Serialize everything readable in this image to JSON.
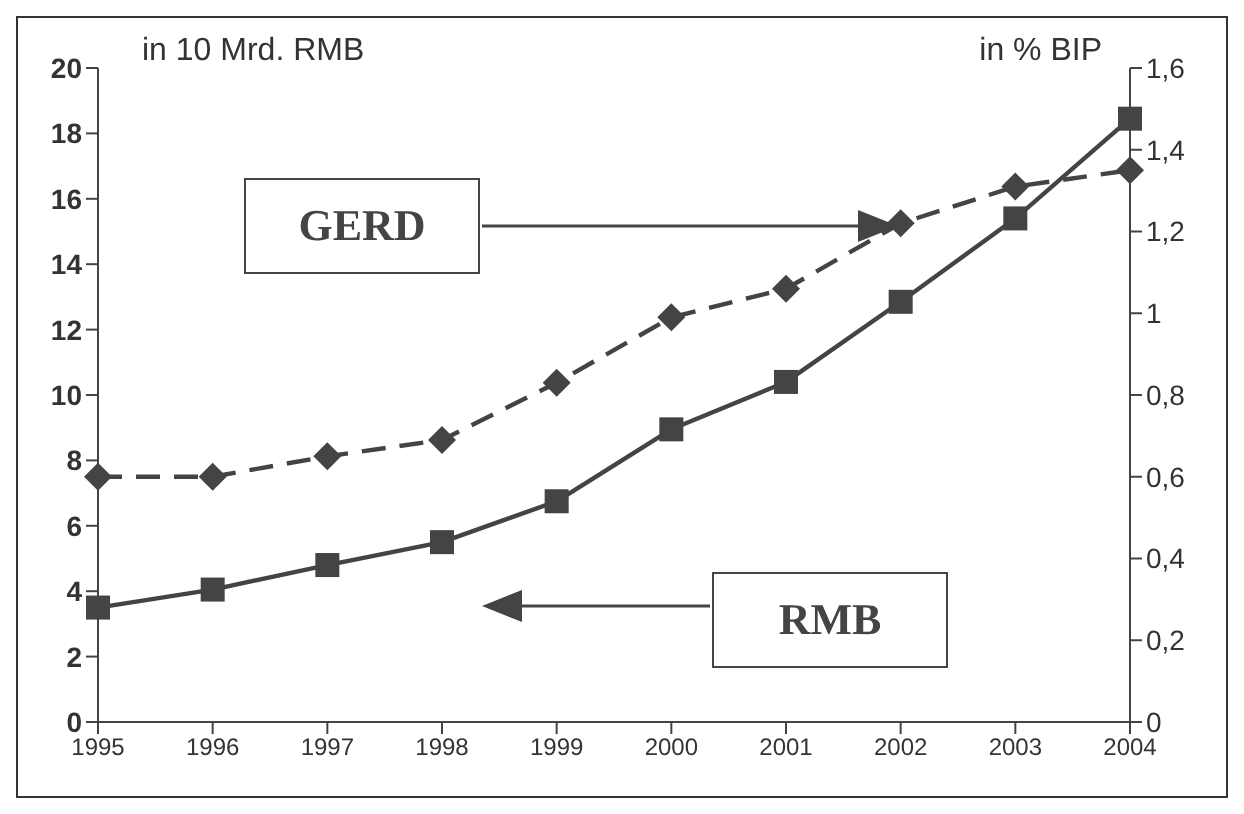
{
  "chart_data": {
    "type": "line",
    "ylabel": "in 10 Mrd.  RMB",
    "y2label": "in %  BIP",
    "categories": [
      "1995",
      "1996",
      "1997",
      "1998",
      "1999",
      "2000",
      "2001",
      "2002",
      "2003",
      "2004"
    ],
    "series": [
      {
        "name": "GERD",
        "type": "line",
        "axis": "y2",
        "color": "#444444",
        "marker": "diamond",
        "line_style": "dashed",
        "values": [
          0.6,
          0.6,
          0.65,
          0.69,
          0.83,
          0.99,
          1.06,
          1.22,
          1.31,
          1.35
        ]
      },
      {
        "name": "RMB",
        "type": "line",
        "axis": "y",
        "color": "#444444",
        "marker": "square",
        "line_style": "solid",
        "values": [
          3.5,
          4.05,
          4.8,
          5.5,
          6.75,
          8.95,
          10.4,
          12.85,
          15.4,
          18.45
        ]
      }
    ],
    "ylim": [
      0,
      20
    ],
    "yticks": [
      0,
      2,
      4,
      6,
      8,
      10,
      12,
      14,
      16,
      18,
      20
    ],
    "y2lim": [
      0,
      1.6
    ],
    "y2ticks": [
      0,
      {
        "value": 0.2,
        "label": "0,2"
      },
      {
        "value": 0.4,
        "label": "0,4"
      },
      {
        "value": 0.6,
        "label": "0,6"
      },
      {
        "value": 0.8,
        "label": "0,8"
      },
      1,
      {
        "value": 1.2,
        "label": "1,2"
      },
      {
        "value": 1.4,
        "label": "1,4"
      },
      {
        "value": 1.6,
        "label": "1,6"
      }
    ],
    "grid": false,
    "legend": "center"
  }
}
